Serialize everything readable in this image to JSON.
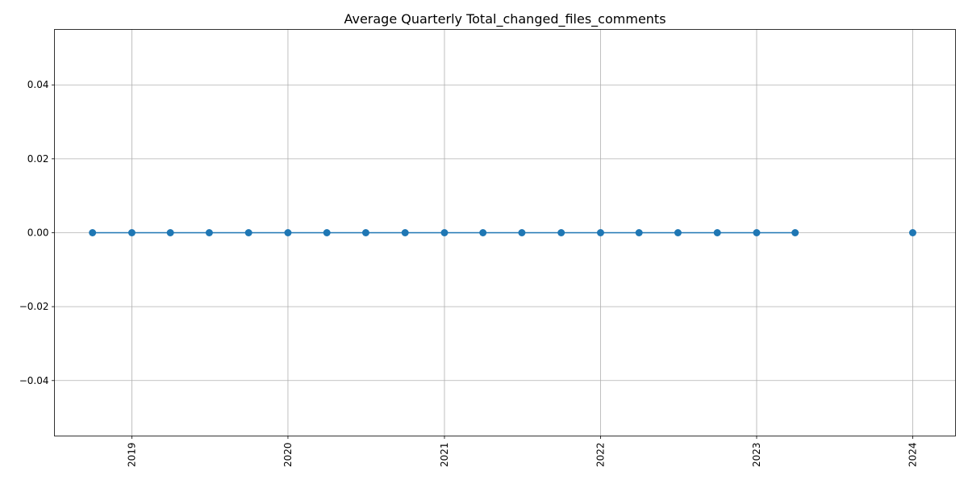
{
  "chart_data": {
    "type": "line",
    "title": "Average Quarterly Total_changed_files_comments",
    "xlabel": "",
    "ylabel": "",
    "x_axis": "date",
    "xlim": [
      "2018-07-04",
      "2024-04-10"
    ],
    "ylim": [
      -0.055,
      0.055
    ],
    "x_ticks": [
      "2019-01-01",
      "2020-01-01",
      "2021-01-01",
      "2022-01-01",
      "2023-01-01",
      "2024-01-01"
    ],
    "x_tick_labels": [
      "2019",
      "2020",
      "2021",
      "2022",
      "2023",
      "2024"
    ],
    "y_ticks": [
      -0.04,
      -0.02,
      0.0,
      0.02,
      0.04
    ],
    "y_tick_labels": [
      "−0.04",
      "−0.02",
      "0.00",
      "0.02",
      "0.04"
    ],
    "grid": true,
    "legend": "none",
    "line_color": "#1f77b4",
    "marker": "circle",
    "segments": [
      {
        "x": [
          "2018-10-01",
          "2019-01-01",
          "2019-04-01",
          "2019-07-01",
          "2019-10-01",
          "2020-01-01",
          "2020-04-01",
          "2020-07-01",
          "2020-10-01",
          "2021-01-01",
          "2021-04-01",
          "2021-07-01",
          "2021-10-01",
          "2022-01-01",
          "2022-04-01",
          "2022-07-01",
          "2022-10-01",
          "2023-01-01",
          "2023-04-01"
        ],
        "y": [
          0,
          0,
          0,
          0,
          0,
          0,
          0,
          0,
          0,
          0,
          0,
          0,
          0,
          0,
          0,
          0,
          0,
          0,
          0
        ]
      },
      {
        "x": [
          "2024-01-01"
        ],
        "y": [
          0
        ]
      }
    ]
  }
}
